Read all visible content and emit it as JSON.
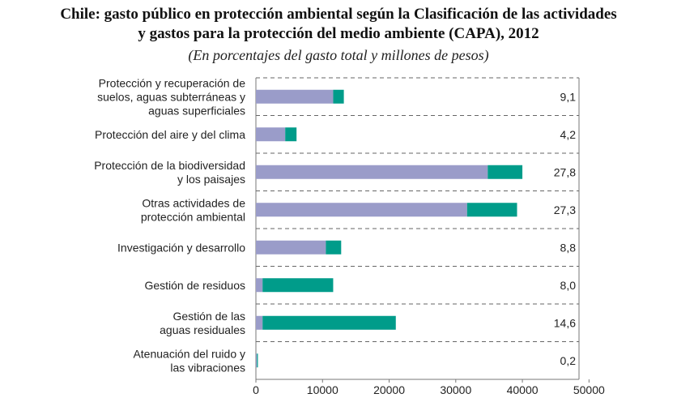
{
  "header": {
    "title_line1": "Chile: gasto público en protección ambiental según la Clasificación de las actividades",
    "title_line2": "y gastos para la protección del medio ambiente (CAPA), 2012",
    "subtitle": "(En porcentajes del gasto total y millones de pesos)"
  },
  "colors": {
    "series_a": "#9a9cc9",
    "series_b": "#009c8a"
  },
  "chart_data": {
    "type": "bar",
    "orientation": "horizontal",
    "stacked": true,
    "categories": [
      [
        "Protección y recuperación de",
        "suelos, aguas subterráneas y",
        "aguas superficiales"
      ],
      [
        "Protección del aire y del clima"
      ],
      [
        "Protección de la biodiversidad",
        "y los paisajes"
      ],
      [
        "Otras actividades de",
        "protección ambiental"
      ],
      [
        "Investigación y desarrollo"
      ],
      [
        "Gestión de residuos"
      ],
      [
        "Gestión de las",
        "aguas residuales"
      ],
      [
        "Atenuación del ruido y",
        "las vibraciones"
      ]
    ],
    "series": [
      {
        "values": [
          11600,
          4400,
          34800,
          31700,
          10500,
          1000,
          1000,
          150
        ]
      },
      {
        "values": [
          1600,
          1700,
          5200,
          7500,
          2300,
          10600,
          20000,
          150
        ]
      }
    ],
    "percent_labels": [
      "9,1",
      "4,2",
      "27,8",
      "27,3",
      "8,8",
      "8,0",
      "14,6",
      "0,2"
    ],
    "x_ticks": [
      "0",
      "10000",
      "20000",
      "30000",
      "40000",
      "50000"
    ],
    "xlim": [
      0,
      48500
    ],
    "grid": "dashed horizontal separators"
  }
}
